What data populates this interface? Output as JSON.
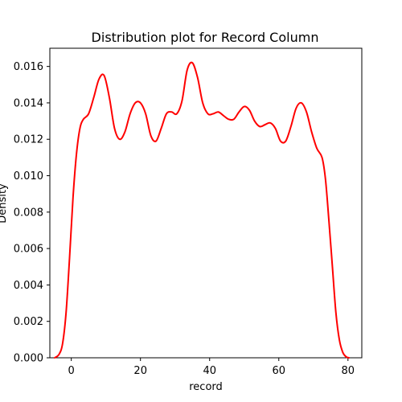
{
  "chart_data": {
    "type": "line",
    "title": "Distribution plot for Record Column",
    "xlabel": "record",
    "ylabel": "Density",
    "xlim": [
      -6.2,
      84.0
    ],
    "ylim": [
      0.0,
      0.017
    ],
    "xticks": [
      0,
      20,
      40,
      60,
      80
    ],
    "yticks": [
      0.0,
      0.002,
      0.004,
      0.006,
      0.008,
      0.01,
      0.012,
      0.014,
      0.016
    ],
    "ytick_labels": [
      "0.000",
      "0.002",
      "0.004",
      "0.006",
      "0.008",
      "0.010",
      "0.012",
      "0.014",
      "0.016"
    ],
    "grid": false,
    "series": [
      {
        "color": "#ff0000",
        "x": [
          -4.8,
          -3.5,
          -2.5,
          -1.5,
          -0.5,
          0.5,
          1.5,
          2.5,
          3.5,
          5,
          6.5,
          8,
          9.5,
          11,
          12.5,
          14,
          15.5,
          17,
          18.5,
          20,
          21.5,
          23,
          24.5,
          26,
          27.5,
          29,
          30.5,
          32,
          33.5,
          35,
          36.5,
          38,
          39.5,
          41,
          42.5,
          44,
          45.5,
          47,
          48.5,
          50,
          51.5,
          53,
          54.5,
          56,
          57.5,
          59,
          60.5,
          62,
          63.5,
          65,
          66.5,
          68,
          69.5,
          71,
          72.5,
          73.5,
          74.5,
          75.5,
          76.5,
          77.5,
          78.5,
          79.5,
          80.3
        ],
        "y": [
          0.0,
          0.0002,
          0.0008,
          0.0025,
          0.0055,
          0.0088,
          0.0112,
          0.0126,
          0.0131,
          0.0134,
          0.0143,
          0.0153,
          0.0155,
          0.0143,
          0.0126,
          0.012,
          0.0124,
          0.0134,
          0.014,
          0.014,
          0.0134,
          0.0122,
          0.0119,
          0.0126,
          0.0134,
          0.0135,
          0.0134,
          0.0141,
          0.0158,
          0.0162,
          0.0154,
          0.014,
          0.0134,
          0.0134,
          0.0135,
          0.0133,
          0.0131,
          0.0131,
          0.0135,
          0.0138,
          0.0136,
          0.013,
          0.0127,
          0.0128,
          0.0129,
          0.0126,
          0.0119,
          0.0119,
          0.0127,
          0.0137,
          0.014,
          0.0135,
          0.0124,
          0.0115,
          0.011,
          0.0098,
          0.0075,
          0.005,
          0.0025,
          0.001,
          0.0003,
          5e-05,
          0.0
        ]
      }
    ]
  }
}
